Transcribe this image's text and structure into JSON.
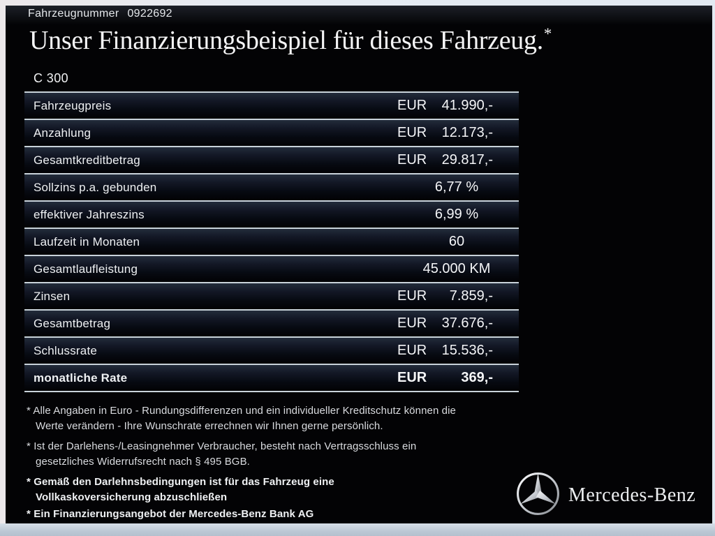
{
  "header": {
    "vehicle_number_label": "Fahrzeugnummer",
    "vehicle_number": "0922692",
    "title": "Unser Finanzierungsbeispiel für dieses Fahrzeug.",
    "title_asterisk": "*",
    "model": "C 300"
  },
  "table": {
    "rows": [
      {
        "label": "Fahrzeugpreis",
        "currency": "EUR",
        "value": "41.990,-",
        "bold": false
      },
      {
        "label": "Anzahlung",
        "currency": "EUR",
        "value": "12.173,-",
        "bold": false
      },
      {
        "label": "Gesamtkreditbetrag",
        "currency": "EUR",
        "value": "29.817,-",
        "bold": false
      },
      {
        "label": "Sollzins p.a. gebunden",
        "currency": "",
        "value": "6,77 %",
        "bold": false
      },
      {
        "label": "effektiver Jahreszins",
        "currency": "",
        "value": "6,99 %",
        "bold": false
      },
      {
        "label": "Laufzeit in Monaten",
        "currency": "",
        "value": "60",
        "bold": false
      },
      {
        "label": "Gesamtlaufleistung",
        "currency": "",
        "value": "45.000 KM",
        "bold": false
      },
      {
        "label": "Zinsen",
        "currency": "EUR",
        "value": "7.859,-",
        "bold": false
      },
      {
        "label": "Gesamtbetrag",
        "currency": "EUR",
        "value": "37.676,-",
        "bold": false
      },
      {
        "label": "Schlussrate",
        "currency": "EUR",
        "value": "15.536,-",
        "bold": false
      },
      {
        "label": "monatliche Rate",
        "currency": "EUR",
        "value": "369,-",
        "bold": true
      }
    ]
  },
  "footnote_marker": "*",
  "footnotes": [
    {
      "bold": false,
      "lines": [
        "Alle Angaben in Euro - Rundungsdifferenzen und ein individueller Kreditschutz können die",
        "Werte verändern - Ihre Wunschrate errechnen wir Ihnen gerne persönlich."
      ]
    },
    {
      "bold": false,
      "lines": [
        "Ist der Darlehens-/Leasingnehmer Verbraucher, besteht nach Vertragsschluss ein",
        "gesetzliches Widerrufsrecht nach § 495 BGB."
      ]
    },
    {
      "bold": true,
      "lines": [
        "Gemäß den Darlehnsbedingungen ist für das Fahrzeug eine",
        "Vollkaskoversicherung abzuschließen"
      ]
    },
    {
      "bold": true,
      "lines": [
        "Ein Finanzierungsangebot der Mercedes-Benz Bank AG"
      ]
    }
  ],
  "brand": {
    "name": "Mercedes-Benz",
    "logo": "mercedes-star-icon"
  },
  "colors": {
    "panel_background": "#030305",
    "separator_line": "#c9d3da",
    "frame": "#e6ecf3",
    "bottom_strip": "#b6c2d0",
    "text": "#eef0f2"
  }
}
